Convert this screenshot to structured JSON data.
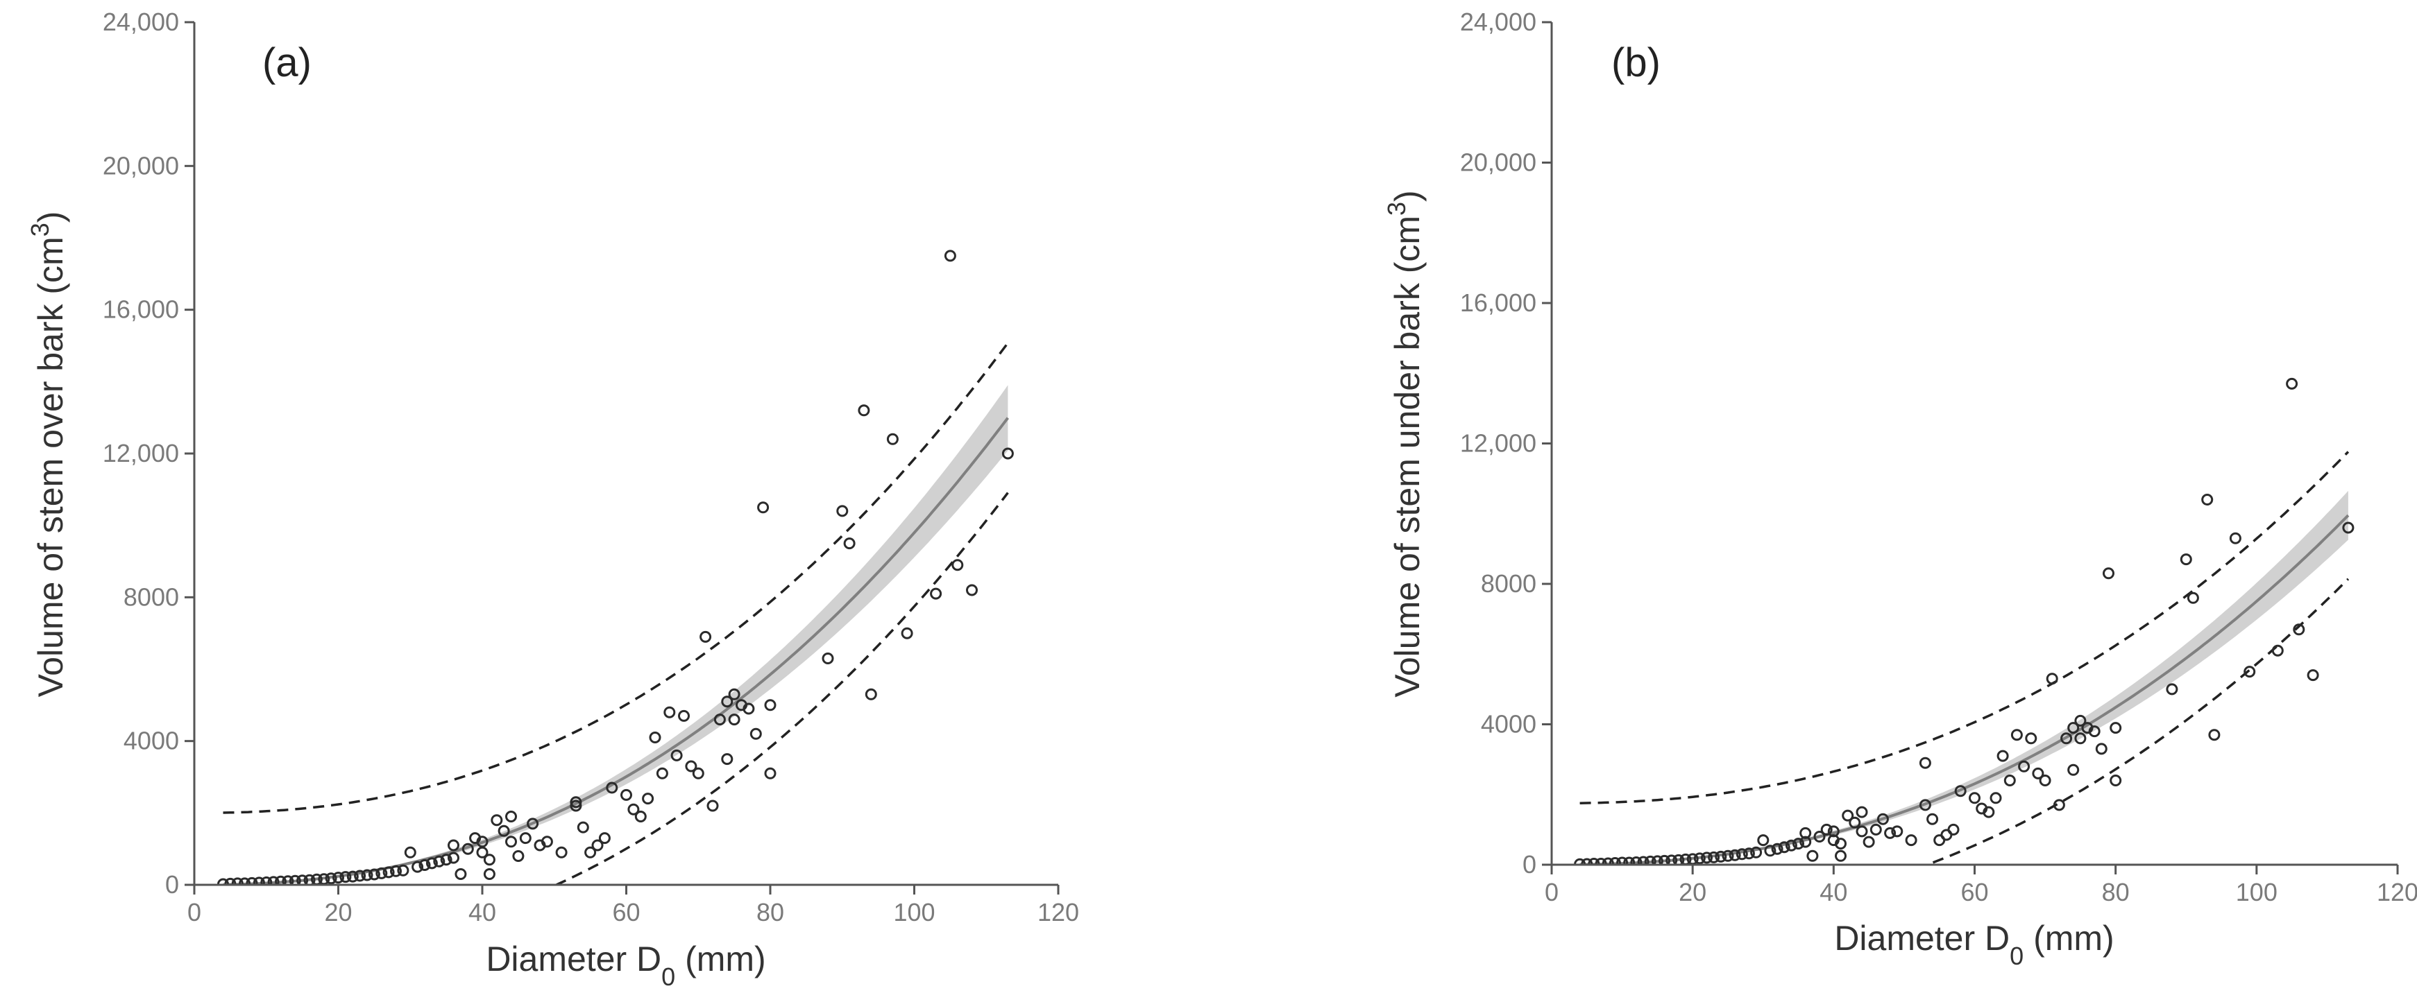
{
  "chart_data": [
    {
      "type": "scatter",
      "panel_label": "(a)",
      "xlabel": "Diameter D",
      "xlabel_sub": "0",
      "xlabel_unit": " (mm)",
      "ylabel": "Volume of stem over bark (cm",
      "ylabel_sup": "3",
      "ylabel_end": ")",
      "xlim": [
        0,
        120
      ],
      "ylim": [
        0,
        24000
      ],
      "x_ticks": [
        0,
        20,
        40,
        60,
        80,
        100,
        120
      ],
      "x_tick_labels": [
        "0",
        "20",
        "40",
        "60",
        "80",
        "100",
        "120"
      ],
      "y_ticks": [
        0,
        4000,
        8000,
        12000,
        16000,
        20000,
        24000
      ],
      "y_tick_labels": [
        "0",
        "4000",
        "8000",
        "12,000",
        "16,000",
        "20,000",
        "24,000"
      ],
      "fit": {
        "a": 0.235,
        "b": 2.31,
        "x_min": 4,
        "x_max": 113
      },
      "confidence_band_rel": 0.07,
      "prediction_interval_halfwidth": {
        "base": 2000,
        "coef": 2e-07,
        "power": 4.2
      },
      "points": [
        [
          4,
          20
        ],
        [
          5,
          30
        ],
        [
          6,
          40
        ],
        [
          7,
          40
        ],
        [
          8,
          50
        ],
        [
          9,
          60
        ],
        [
          10,
          70
        ],
        [
          11,
          80
        ],
        [
          12,
          90
        ],
        [
          13,
          100
        ],
        [
          14,
          110
        ],
        [
          15,
          120
        ],
        [
          16,
          130
        ],
        [
          17,
          150
        ],
        [
          18,
          160
        ],
        [
          19,
          180
        ],
        [
          20,
          200
        ],
        [
          21,
          220
        ],
        [
          22,
          230
        ],
        [
          23,
          250
        ],
        [
          24,
          270
        ],
        [
          25,
          290
        ],
        [
          26,
          320
        ],
        [
          27,
          350
        ],
        [
          28,
          380
        ],
        [
          29,
          400
        ],
        [
          30,
          900
        ],
        [
          31,
          500
        ],
        [
          32,
          550
        ],
        [
          33,
          600
        ],
        [
          34,
          650
        ],
        [
          35,
          700
        ],
        [
          36,
          750
        ],
        [
          36,
          1100
        ],
        [
          37,
          300
        ],
        [
          38,
          1000
        ],
        [
          39,
          1300
        ],
        [
          40,
          900
        ],
        [
          40,
          1200
        ],
        [
          41,
          700
        ],
        [
          41,
          300
        ],
        [
          42,
          1800
        ],
        [
          43,
          1500
        ],
        [
          44,
          1900
        ],
        [
          44,
          1200
        ],
        [
          45,
          800
        ],
        [
          46,
          1300
        ],
        [
          47,
          1700
        ],
        [
          48,
          1100
        ],
        [
          49,
          1200
        ],
        [
          51,
          900
        ],
        [
          53,
          2200
        ],
        [
          53,
          2300
        ],
        [
          54,
          1600
        ],
        [
          55,
          900
        ],
        [
          56,
          1100
        ],
        [
          57,
          1300
        ],
        [
          58,
          2700
        ],
        [
          60,
          2500
        ],
        [
          61,
          2100
        ],
        [
          62,
          1900
        ],
        [
          63,
          2400
        ],
        [
          64,
          4100
        ],
        [
          65,
          3100
        ],
        [
          66,
          4800
        ],
        [
          67,
          3600
        ],
        [
          68,
          4700
        ],
        [
          69,
          3300
        ],
        [
          70,
          3100
        ],
        [
          71,
          6900
        ],
        [
          72,
          2200
        ],
        [
          73,
          4600
        ],
        [
          74,
          3500
        ],
        [
          74,
          5100
        ],
        [
          75,
          4600
        ],
        [
          75,
          5300
        ],
        [
          76,
          5000
        ],
        [
          77,
          4900
        ],
        [
          78,
          4200
        ],
        [
          79,
          10500
        ],
        [
          80,
          3100
        ],
        [
          80,
          5000
        ],
        [
          88,
          6300
        ],
        [
          90,
          10400
        ],
        [
          91,
          9500
        ],
        [
          93,
          13200
        ],
        [
          94,
          5300
        ],
        [
          97,
          12400
        ],
        [
          99,
          7000
        ],
        [
          103,
          8100
        ],
        [
          105,
          17500
        ],
        [
          106,
          8900
        ],
        [
          108,
          8200
        ],
        [
          113,
          12000
        ]
      ]
    },
    {
      "type": "scatter",
      "panel_label": "(b)",
      "xlabel": "Diameter D",
      "xlabel_sub": "0",
      "xlabel_unit": " (mm)",
      "ylabel": "Volume of stem under bark (cm",
      "ylabel_sup": "3",
      "ylabel_end": ")",
      "xlim": [
        0,
        120
      ],
      "ylim": [
        0,
        24000
      ],
      "x_ticks": [
        0,
        20,
        40,
        60,
        80,
        100,
        120
      ],
      "x_tick_labels": [
        "0",
        "20",
        "40",
        "60",
        "80",
        "100",
        "120"
      ],
      "y_ticks": [
        0,
        4000,
        8000,
        12000,
        16000,
        20000,
        24000
      ],
      "y_tick_labels": [
        "0",
        "4000",
        "8000",
        "12,000",
        "16,000",
        "20,000",
        "24,000"
      ],
      "fit": {
        "a": 0.18,
        "b": 2.31,
        "x_min": 4,
        "x_max": 113
      },
      "confidence_band_rel": 0.07,
      "prediction_interval_halfwidth": {
        "base": 1750,
        "coef": 9e-08,
        "power": 4.3
      },
      "points": [
        [
          4,
          15
        ],
        [
          5,
          20
        ],
        [
          6,
          30
        ],
        [
          7,
          30
        ],
        [
          8,
          40
        ],
        [
          9,
          50
        ],
        [
          10,
          60
        ],
        [
          11,
          60
        ],
        [
          12,
          70
        ],
        [
          13,
          80
        ],
        [
          14,
          90
        ],
        [
          15,
          100
        ],
        [
          16,
          110
        ],
        [
          17,
          120
        ],
        [
          18,
          130
        ],
        [
          19,
          150
        ],
        [
          20,
          160
        ],
        [
          21,
          180
        ],
        [
          22,
          200
        ],
        [
          23,
          210
        ],
        [
          24,
          230
        ],
        [
          25,
          250
        ],
        [
          26,
          270
        ],
        [
          27,
          300
        ],
        [
          28,
          320
        ],
        [
          29,
          350
        ],
        [
          30,
          700
        ],
        [
          31,
          400
        ],
        [
          32,
          450
        ],
        [
          33,
          500
        ],
        [
          34,
          550
        ],
        [
          35,
          600
        ],
        [
          36,
          650
        ],
        [
          36,
          900
        ],
        [
          37,
          250
        ],
        [
          38,
          800
        ],
        [
          39,
          1000
        ],
        [
          40,
          700
        ],
        [
          40,
          950
        ],
        [
          41,
          600
        ],
        [
          41,
          250
        ],
        [
          42,
          1400
        ],
        [
          43,
          1200
        ],
        [
          44,
          1500
        ],
        [
          44,
          950
        ],
        [
          45,
          650
        ],
        [
          46,
          1000
        ],
        [
          47,
          1300
        ],
        [
          48,
          900
        ],
        [
          49,
          950
        ],
        [
          51,
          700
        ],
        [
          53,
          1700
        ],
        [
          53,
          2900
        ],
        [
          54,
          1300
        ],
        [
          55,
          700
        ],
        [
          56,
          850
        ],
        [
          57,
          1000
        ],
        [
          58,
          2100
        ],
        [
          60,
          1900
        ],
        [
          61,
          1600
        ],
        [
          62,
          1500
        ],
        [
          63,
          1900
        ],
        [
          64,
          3100
        ],
        [
          65,
          2400
        ],
        [
          66,
          3700
        ],
        [
          67,
          2800
        ],
        [
          68,
          3600
        ],
        [
          69,
          2600
        ],
        [
          70,
          2400
        ],
        [
          71,
          5300
        ],
        [
          72,
          1700
        ],
        [
          73,
          3600
        ],
        [
          74,
          2700
        ],
        [
          74,
          3900
        ],
        [
          75,
          3600
        ],
        [
          75,
          4100
        ],
        [
          76,
          3900
        ],
        [
          77,
          3800
        ],
        [
          78,
          3300
        ],
        [
          79,
          8300
        ],
        [
          80,
          2400
        ],
        [
          80,
          3900
        ],
        [
          88,
          5000
        ],
        [
          90,
          8700
        ],
        [
          91,
          7600
        ],
        [
          93,
          10400
        ],
        [
          94,
          3700
        ],
        [
          97,
          9300
        ],
        [
          99,
          5500
        ],
        [
          103,
          6100
        ],
        [
          105,
          13700
        ],
        [
          106,
          6700
        ],
        [
          108,
          5400
        ],
        [
          113,
          9600
        ]
      ]
    }
  ]
}
